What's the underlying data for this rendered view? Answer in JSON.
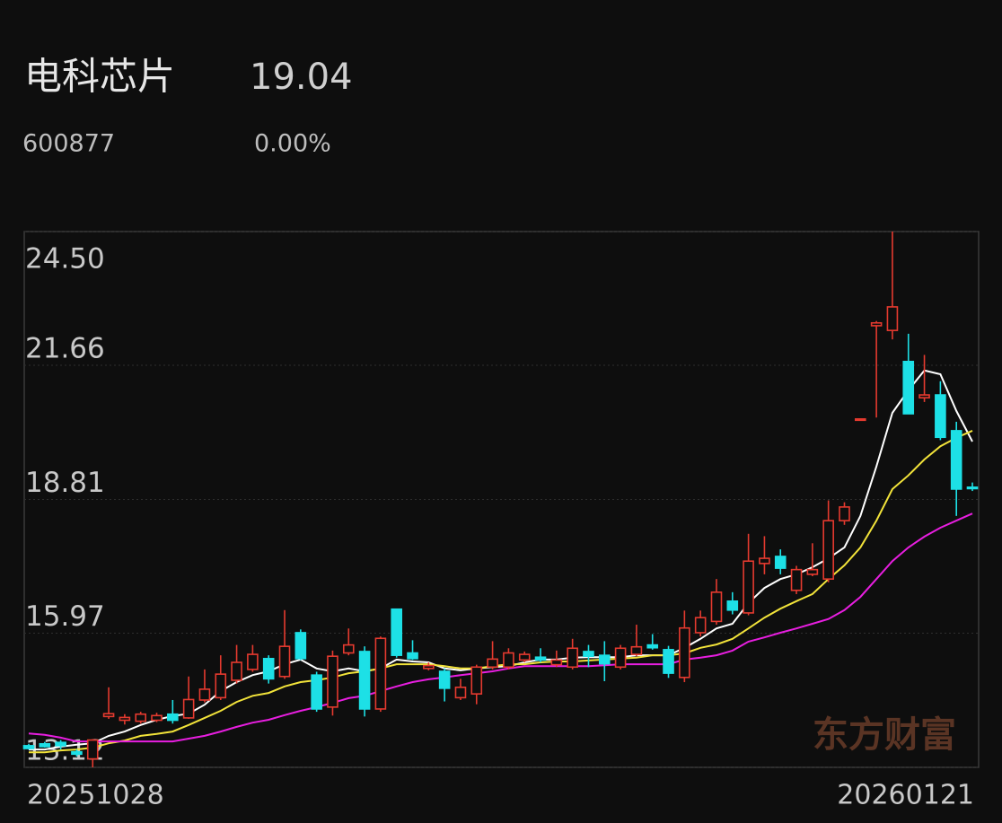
{
  "header": {
    "name": "电科芯片",
    "price": "19.04",
    "code": "600877",
    "change": "0.00%"
  },
  "chart_data": {
    "type": "candlestick",
    "watermark": "东方财富",
    "categories": [
      "20251028",
      null,
      null,
      null,
      null,
      null,
      null,
      null,
      null,
      null,
      null,
      null,
      null,
      null,
      null,
      null,
      null,
      null,
      null,
      null,
      null,
      null,
      null,
      null,
      null,
      null,
      null,
      null,
      null,
      null,
      null,
      null,
      null,
      null,
      null,
      null,
      null,
      null,
      null,
      null,
      null,
      null,
      null,
      null,
      null,
      null,
      null,
      null,
      null,
      null,
      null,
      null,
      null,
      null,
      null,
      null,
      null,
      null,
      null,
      "20260121"
    ],
    "open": [
      13.58,
      13.62,
      13.65,
      13.45,
      13.3,
      14.2,
      14.12,
      14.1,
      14.12,
      14.25,
      14.17,
      14.55,
      14.6,
      14.97,
      15.2,
      15.43,
      15.05,
      15.98,
      15.08,
      14.4,
      15.55,
      15.58,
      14.36,
      16.48,
      15.55,
      15.22,
      15.16,
      14.6,
      14.68,
      15.25,
      15.25,
      15.4,
      15.46,
      15.3,
      15.25,
      15.58,
      15.5,
      15.25,
      15.52,
      15.72,
      15.62,
      15.03,
      15.98,
      16.22,
      16.65,
      16.4,
      17.45,
      17.6,
      16.88,
      17.22,
      17.12,
      18.36,
      20.51,
      22.5,
      22.4,
      21.74,
      20.97,
      21.03,
      20.27,
      19.07
    ],
    "high": [
      13.62,
      13.66,
      13.7,
      13.5,
      13.72,
      14.82,
      14.25,
      14.3,
      14.28,
      14.55,
      15.05,
      15.2,
      15.5,
      15.72,
      15.72,
      15.5,
      16.46,
      16.05,
      15.15,
      15.6,
      16.07,
      15.69,
      15.9,
      16.48,
      15.82,
      15.35,
      15.22,
      15.0,
      15.3,
      15.8,
      15.65,
      15.58,
      15.65,
      15.6,
      15.85,
      15.72,
      15.8,
      15.72,
      16.15,
      15.95,
      15.7,
      16.45,
      16.45,
      17.12,
      16.84,
      18.08,
      18.03,
      17.75,
      17.4,
      17.88,
      18.79,
      18.75,
      20.52,
      22.6,
      24.5,
      22.33,
      21.88,
      21.32,
      20.46,
      19.17
    ],
    "low": [
      13.5,
      13.54,
      13.5,
      13.35,
      13.12,
      14.15,
      14.03,
      14.05,
      14.08,
      14.05,
      14.15,
      14.5,
      14.55,
      14.9,
      15.15,
      14.9,
      15.0,
      15.4,
      14.3,
      14.22,
      15.5,
      14.2,
      14.3,
      15.45,
      15.4,
      15.18,
      14.52,
      14.55,
      14.46,
      15.2,
      15.2,
      15.35,
      15.35,
      15.25,
      15.2,
      15.25,
      14.95,
      15.2,
      15.48,
      15.62,
      15.02,
      14.93,
      15.9,
      16.15,
      16.37,
      16.35,
      17.22,
      17.22,
      16.8,
      17.18,
      17.05,
      18.27,
      20.51,
      20.55,
      22.21,
      20.63,
      20.88,
      20.07,
      18.46,
      18.99
    ],
    "close": [
      13.52,
      13.56,
      13.58,
      13.4,
      13.7,
      14.26,
      14.18,
      14.25,
      14.22,
      14.12,
      14.56,
      14.78,
      15.1,
      15.35,
      15.52,
      15.0,
      15.69,
      15.43,
      14.36,
      15.48,
      15.72,
      14.36,
      15.86,
      15.5,
      15.43,
      15.28,
      14.8,
      14.82,
      15.25,
      15.42,
      15.55,
      15.52,
      15.4,
      15.4,
      15.65,
      15.48,
      15.32,
      15.65,
      15.68,
      15.66,
      15.12,
      16.08,
      16.3,
      16.84,
      16.46,
      17.5,
      17.56,
      17.35,
      17.32,
      17.32,
      18.36,
      18.65,
      20.52,
      22.56,
      22.9,
      20.63,
      21.03,
      20.13,
      19.03,
      19.04
    ],
    "up_color": "#e53a2f",
    "down_color": "#1de0e6",
    "lines": [
      {
        "color": "#ffffff",
        "values": [
          13.5,
          13.5,
          13.56,
          13.6,
          13.63,
          13.79,
          13.88,
          14.02,
          14.13,
          14.21,
          14.26,
          14.45,
          14.74,
          14.93,
          15.08,
          15.16,
          15.31,
          15.41,
          15.22,
          15.16,
          15.22,
          15.16,
          15.22,
          15.41,
          15.37,
          15.35,
          15.22,
          15.18,
          15.22,
          15.25,
          15.27,
          15.35,
          15.41,
          15.41,
          15.45,
          15.46,
          15.46,
          15.46,
          15.5,
          15.5,
          15.5,
          15.66,
          15.85,
          16.07,
          16.17,
          16.61,
          16.93,
          17.12,
          17.22,
          17.37,
          17.56,
          17.79,
          18.46,
          19.51,
          20.65,
          21.13,
          21.55,
          21.47,
          20.69,
          20.04
        ]
      },
      {
        "color": "#f2e33a",
        "values": [
          13.44,
          13.44,
          13.48,
          13.5,
          13.54,
          13.63,
          13.69,
          13.79,
          13.83,
          13.88,
          14.02,
          14.17,
          14.32,
          14.51,
          14.64,
          14.7,
          14.84,
          14.93,
          14.97,
          15.03,
          15.12,
          15.16,
          15.22,
          15.31,
          15.31,
          15.31,
          15.27,
          15.22,
          15.22,
          15.27,
          15.31,
          15.31,
          15.35,
          15.37,
          15.37,
          15.39,
          15.41,
          15.43,
          15.45,
          15.5,
          15.5,
          15.54,
          15.66,
          15.73,
          15.85,
          16.07,
          16.3,
          16.49,
          16.65,
          16.8,
          17.12,
          17.41,
          17.79,
          18.36,
          19.03,
          19.32,
          19.66,
          19.94,
          20.12,
          20.27
        ]
      },
      {
        "color": "#e81ee0",
        "values": [
          13.84,
          13.81,
          13.75,
          13.67,
          13.67,
          13.67,
          13.67,
          13.67,
          13.67,
          13.67,
          13.73,
          13.79,
          13.88,
          13.98,
          14.07,
          14.13,
          14.23,
          14.32,
          14.4,
          14.49,
          14.59,
          14.64,
          14.74,
          14.84,
          14.93,
          14.99,
          15.03,
          15.08,
          15.12,
          15.16,
          15.22,
          15.27,
          15.27,
          15.27,
          15.27,
          15.27,
          15.29,
          15.31,
          15.31,
          15.31,
          15.31,
          15.41,
          15.45,
          15.5,
          15.6,
          15.79,
          15.88,
          15.98,
          16.07,
          16.17,
          16.27,
          16.46,
          16.74,
          17.12,
          17.5,
          17.79,
          18.02,
          18.21,
          18.36,
          18.51
        ]
      }
    ],
    "ylim": [
      13.12,
      24.5
    ],
    "yticks": [
      {
        "value": 24.5,
        "label": "24.50"
      },
      21.66,
      18.81,
      15.97,
      13.12
    ],
    "grid": true
  }
}
